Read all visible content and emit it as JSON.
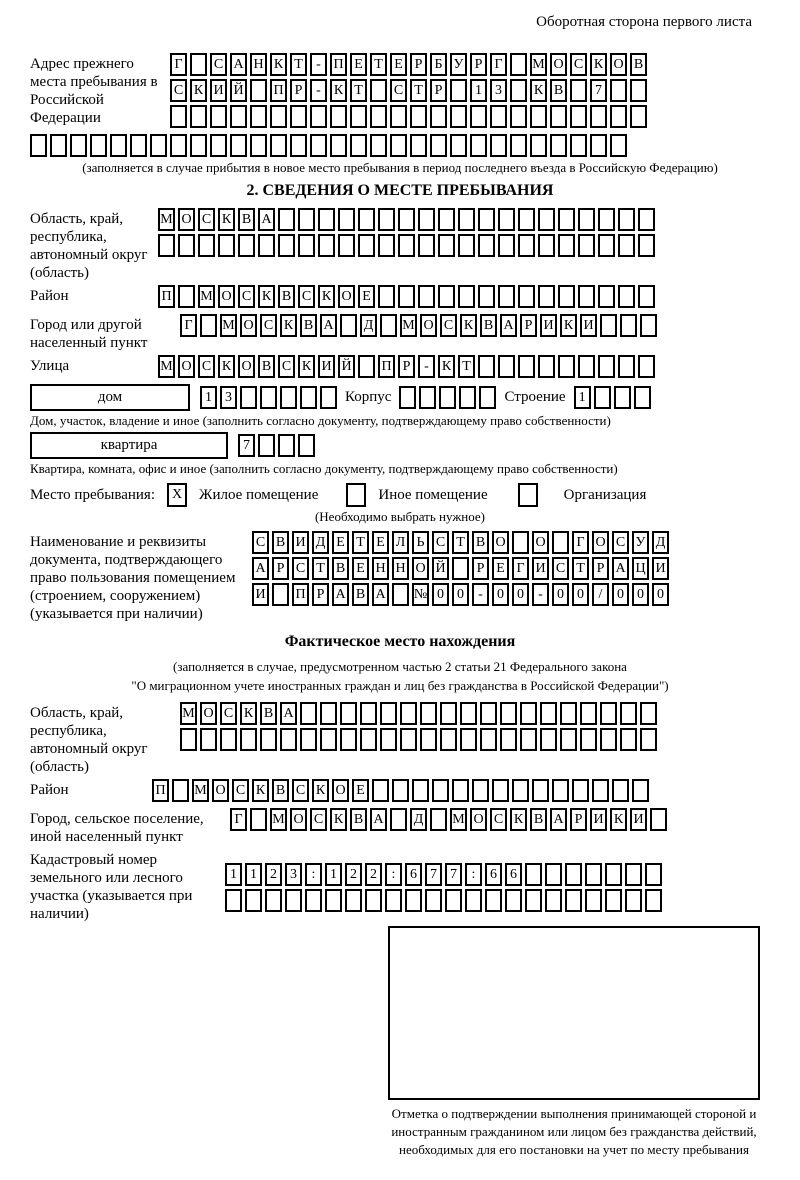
{
  "header": {
    "note": "Оборотная сторона первого листа"
  },
  "prev_address": {
    "label": "Адрес прежнего места пребывания в Российской Федерации",
    "row1": "Г САНКТ-ПЕТЕРБУРГ МОСКОВ",
    "row2": "СКИЙ ПР-КТ СТР 13 КВ 7  ",
    "row3": "                        ",
    "full_row": "                              ",
    "note": "(заполняется в случае прибытия в новое место пребывания в период последнего въезда в Российскую Федерацию)"
  },
  "section2": {
    "title": "2. СВЕДЕНИЯ О МЕСТЕ ПРЕБЫВАНИЯ",
    "region": {
      "label": "Область, край, республика, автономный округ (область)",
      "row1": "МОСКВА                   ",
      "row2": "                         "
    },
    "district": {
      "label": "Район",
      "row": "П МОСКВСКОЕ              "
    },
    "city": {
      "label": "Город или другой населенный пункт",
      "row": "Г МОСКВА Д МОСКВАРИКИ   "
    },
    "street": {
      "label": "Улица",
      "row": "МОСКОВСКИЙ ПР-КТ         "
    },
    "house": {
      "box_label": "дом",
      "cells": "13     ",
      "korpus_label": "Корпус",
      "korpus_cells": "     ",
      "stroenie_label": "Строение",
      "stroenie_cells": "1   ",
      "caption": "Дом, участок, владение и иное (заполнить согласно документу, подтверждающему право собственности)"
    },
    "apartment": {
      "box_label": "квартира",
      "cells": "7   ",
      "caption": "Квартира, комната, офис и иное (заполнить согласно документу, подтверждающему право собственности)"
    },
    "stay_type": {
      "label": "Место пребывания:",
      "options": [
        {
          "label": "Жилое помещение",
          "mark": "X"
        },
        {
          "label": "Иное помещение",
          "mark": ""
        },
        {
          "label": "Организация",
          "mark": ""
        }
      ],
      "note": "(Необходимо выбрать нужное)"
    },
    "document": {
      "label": "Наименование и реквизиты документа, подтверждающего право пользования помещением (строением, сооружением) (указывается при наличии)",
      "row1": "СВИДЕТЕЛЬСТВО О ГОСУД",
      "row2": "АРСТВЕННОЙ РЕГИСТРАЦИ",
      "row3": "И ПРАВА №00-00-00/000"
    }
  },
  "actual_location": {
    "title": "Фактическое место нахождения",
    "note_line1": "(заполняется в случае, предусмотренном частью 2 статьи 21 Федерального закона",
    "note_line2": "\"О миграционном учете иностранных граждан и лиц без гражданства в Российской Федерации\")",
    "region": {
      "label": "Область, край, республика, автономный округ (область)",
      "row1": "МОСКВА                  ",
      "row2": "                        "
    },
    "district": {
      "label": "Район",
      "row": "П МОСКВСКОЕ              "
    },
    "city": {
      "label": "Город, сельское поселение, иной населенный пункт",
      "row": "Г МОСКВА Д МОСКВАРИКИ "
    },
    "cadastral": {
      "label": "Кадастровый номер земельного или лесного участка (указывается при наличии)",
      "row1": "1123:122:677:66       ",
      "row2": "                      "
    },
    "stamp_caption": "Отметка о подтверждении выполнения принимающей стороной и иностранным гражданином или лицом без гражданства действий, необходимых для его постановки на учет по месту пребывания"
  }
}
